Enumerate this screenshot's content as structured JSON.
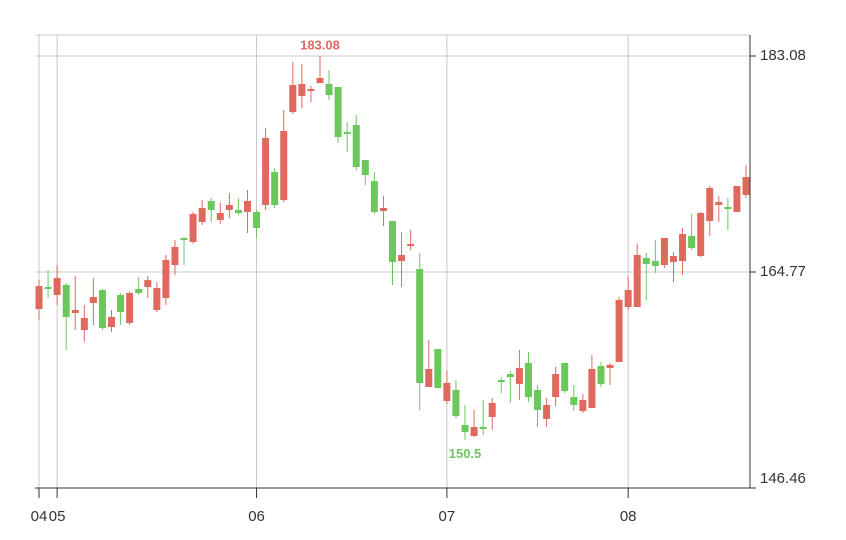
{
  "chart_data": {
    "type": "candlestick",
    "categories": [
      "04",
      null,
      "05",
      null,
      null,
      null,
      null,
      null,
      null,
      null,
      null,
      null,
      null,
      null,
      null,
      null,
      null,
      null,
      null,
      null,
      null,
      null,
      null,
      null,
      "06",
      null,
      null,
      null,
      null,
      null,
      null,
      null,
      null,
      null,
      null,
      null,
      null,
      null,
      null,
      null,
      null,
      null,
      null,
      null,
      null,
      "07",
      null,
      null,
      null,
      null,
      null,
      null,
      null,
      null,
      null,
      null,
      null,
      null,
      null,
      null,
      null,
      null,
      null,
      null,
      null,
      "08",
      null,
      null,
      null,
      null,
      null,
      null,
      null,
      null,
      null,
      null,
      null,
      null,
      null
    ],
    "open": [
      161.63,
      163.5,
      162.82,
      163.67,
      161.29,
      159.85,
      162.14,
      163.24,
      160.11,
      162.82,
      160.45,
      163.33,
      163.5,
      161.55,
      162.57,
      165.36,
      167.65,
      167.31,
      169.01,
      170.79,
      169.18,
      170.03,
      170.03,
      169.86,
      169.86,
      170.45,
      173.25,
      170.87,
      178.33,
      179.69,
      180.11,
      180.79,
      180.71,
      180.45,
      176.64,
      177.23,
      174.26,
      172.48,
      169.94,
      169.09,
      165.7,
      166.97,
      165.02,
      155.02,
      158.24,
      153.83,
      154.77,
      151.8,
      150.87,
      151.63,
      152.48,
      155.61,
      156.12,
      155.28,
      157.06,
      154.77,
      152.31,
      154.17,
      157.06,
      154.17,
      152.99,
      153.24,
      156.8,
      156.63,
      157.14,
      161.8,
      161.8,
      165.96,
      165.7,
      165.36,
      165.62,
      165.7,
      167.82,
      166.13,
      169.09,
      170.45,
      170.28,
      169.86,
      171.3
    ],
    "high": [
      164.09,
      164.94,
      165.36,
      163.84,
      164.43,
      161.97,
      164.26,
      163.33,
      161.55,
      162.99,
      163.16,
      164.35,
      164.43,
      163.92,
      166.21,
      167.48,
      167.74,
      169.86,
      170.87,
      171.04,
      170.62,
      171.47,
      171.04,
      171.72,
      170.03,
      176.98,
      173.59,
      178.5,
      182.57,
      182.4,
      180.54,
      183.08,
      181.89,
      180.45,
      177.49,
      178.08,
      174.26,
      173.25,
      171.21,
      169.09,
      168.16,
      168.33,
      166.38,
      159.01,
      158.24,
      156.38,
      155.61,
      153.5,
      153.07,
      153.92,
      154.09,
      155.87,
      156.38,
      158.16,
      157.99,
      155.19,
      154.09,
      156.72,
      157.06,
      155.19,
      154.43,
      157.73,
      157.14,
      157.06,
      162.65,
      164.35,
      167.14,
      166.38,
      167.48,
      167.65,
      166.47,
      168.5,
      169.69,
      169.86,
      172.06,
      171.21,
      171.04,
      172.06,
      173.84
    ],
    "low": [
      160.7,
      162.57,
      161.97,
      158.16,
      159.85,
      158.84,
      160.28,
      159.85,
      159.68,
      160.28,
      160.28,
      162.82,
      162.57,
      161.38,
      161.97,
      164.52,
      165.36,
      167.14,
      168.75,
      169.01,
      168.84,
      169.35,
      169.6,
      168.08,
      167.65,
      170.03,
      170.2,
      170.7,
      178.16,
      178.67,
      179.18,
      180.79,
      179.35,
      175.7,
      174.94,
      173.42,
      172.14,
      169.69,
      168.67,
      163.67,
      163.5,
      166.63,
      153.07,
      155.02,
      154.94,
      153.58,
      152.39,
      150.5,
      150.78,
      150.95,
      151.38,
      154.51,
      153.67,
      153.92,
      153.75,
      151.63,
      151.63,
      153.41,
      154.51,
      152.99,
      152.82,
      153.24,
      155.02,
      155.19,
      157.14,
      161.55,
      161.8,
      162.4,
      164.69,
      165.11,
      163.92,
      164.52,
      166.63,
      166.04,
      167.82,
      169.01,
      168.33,
      169.86,
      171.04
    ],
    "close": [
      163.58,
      163.33,
      164.26,
      160.96,
      161.55,
      160.87,
      162.65,
      160.02,
      160.96,
      161.38,
      162.99,
      162.99,
      164.09,
      163.41,
      165.79,
      166.89,
      167.48,
      169.69,
      170.2,
      170.03,
      169.77,
      170.45,
      169.77,
      170.79,
      168.5,
      176.13,
      170.45,
      176.72,
      180.62,
      180.71,
      180.28,
      181.22,
      179.77,
      176.21,
      176.47,
      173.67,
      172.99,
      169.86,
      170.2,
      165.62,
      166.21,
      167.14,
      155.36,
      156.55,
      154.94,
      155.36,
      152.56,
      151.21,
      151.63,
      151.46,
      153.67,
      155.44,
      155.87,
      156.63,
      154.17,
      153.07,
      153.5,
      156.12,
      154.68,
      153.5,
      153.92,
      156.55,
      155.28,
      156.89,
      162.4,
      163.24,
      166.21,
      165.45,
      165.28,
      167.65,
      166.13,
      167.99,
      166.8,
      169.77,
      171.89,
      170.7,
      170.11,
      172.06,
      172.82
    ],
    "up_color": "#e0695e",
    "down_color": "#6bc75c",
    "ylim": [
      146.46,
      184.86
    ],
    "yticks": [
      146.46,
      164.77,
      183.08
    ],
    "grid": true
  }
}
